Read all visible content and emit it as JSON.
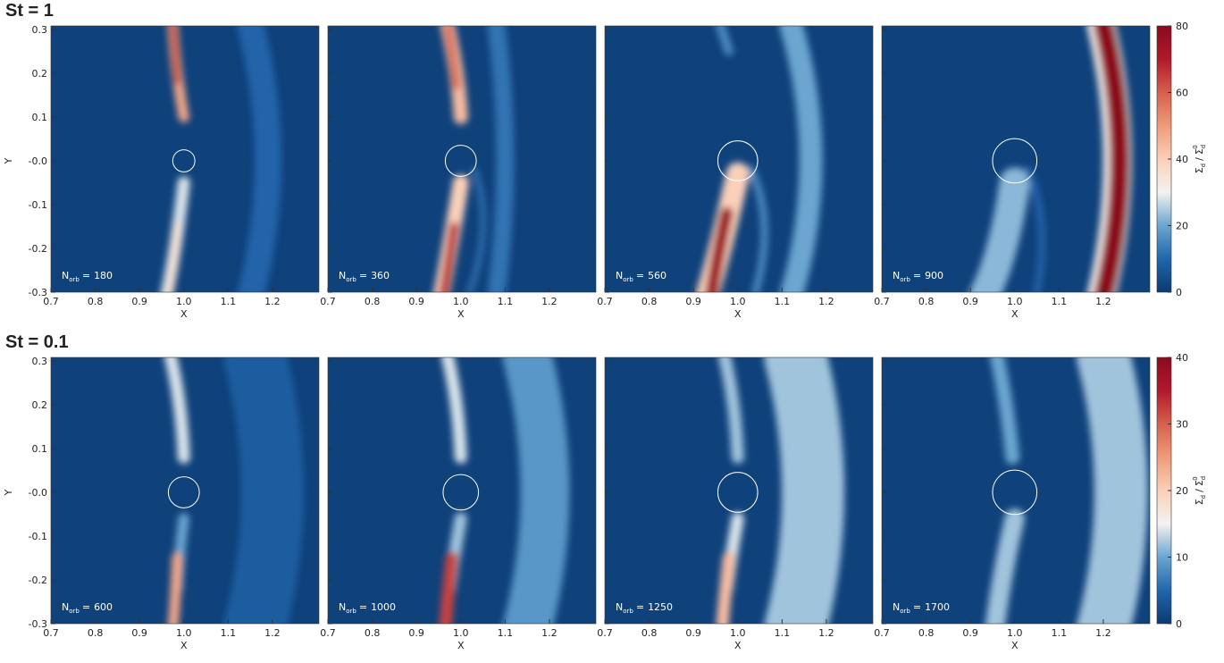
{
  "chart_data": [
    {
      "type": "heatmap",
      "title": "St = 1",
      "xlabel": "X",
      "ylabel": "Y",
      "xlim": [
        0.7,
        1.305
      ],
      "xticks": [
        0.7,
        0.8,
        0.9,
        {
          "value": 1,
          "label": "1.0"
        },
        1.1,
        1.2
      ],
      "ylim": [
        -0.3,
        0.308
      ],
      "yticks": [
        0.3,
        0.2,
        0.1,
        {
          "value": 0,
          "label": "-0.0"
        },
        -0.1,
        -0.2,
        -0.3
      ],
      "annotation": {
        "symbol": "N",
        "subscript": "orb",
        "operator": "="
      },
      "panels": [
        {
          "n_orb": 180
        },
        {
          "n_orb": 360
        },
        {
          "n_orb": 560
        },
        {
          "n_orb": 900
        }
      ],
      "colorbar": {
        "lim": [
          0,
          80
        ],
        "ticks": [
          0,
          20,
          40,
          60,
          80
        ],
        "label": {
          "numerator": "Σ",
          "numerator_sub": "d",
          "separator": "/",
          "denominator": "Σ",
          "denominator_sub": "d",
          "denominator_sup": "0"
        }
      }
    },
    {
      "type": "heatmap",
      "title": "St = 0.1",
      "xlabel": "X",
      "ylabel": "Y",
      "xlim": [
        0.7,
        1.305
      ],
      "xticks": [
        0.7,
        0.8,
        0.9,
        {
          "value": 1,
          "label": "1.0"
        },
        1.1,
        1.2
      ],
      "ylim": [
        -0.3,
        0.308
      ],
      "yticks": [
        0.3,
        0.2,
        0.1,
        {
          "value": 0,
          "label": "-0.0"
        },
        -0.1,
        -0.2,
        -0.3
      ],
      "annotation": {
        "symbol": "N",
        "subscript": "orb",
        "operator": "="
      },
      "panels": [
        {
          "n_orb": 600
        },
        {
          "n_orb": 1000
        },
        {
          "n_orb": 1250
        },
        {
          "n_orb": 1700
        }
      ],
      "colorbar": {
        "lim": [
          0,
          40
        ],
        "ticks": [
          0,
          10,
          20,
          30,
          40
        ],
        "label": {
          "numerator": "Σ",
          "numerator_sub": "d",
          "separator": "/",
          "denominator": "Σ",
          "denominator_sub": "d",
          "denominator_sup": "0"
        }
      }
    }
  ],
  "colormap": [
    "#0b3a72",
    "#2166ac",
    "#6aa6d0",
    "#f4f2f1",
    "#fbd0b9",
    "#f09b7a",
    "#d6604d",
    "#b2182b",
    "#8b0a1f"
  ]
}
